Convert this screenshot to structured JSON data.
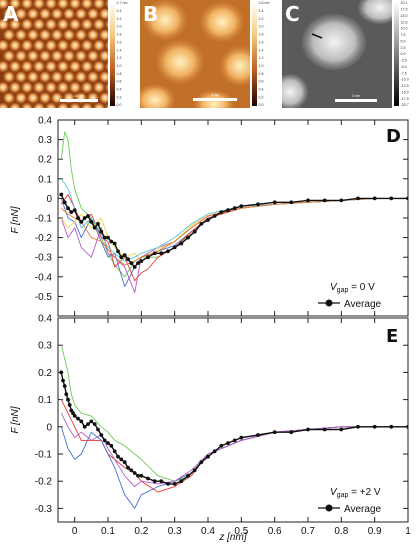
{
  "images": [
    {
      "label": "A",
      "scalebar": "10 nm",
      "colorbar_ticks": [
        "2.7 nm",
        "2.4",
        "2.2",
        "2.0",
        "1.8",
        "1.6",
        "1.4",
        "1.2",
        "1.0",
        "0.8",
        "0.6",
        "0.4",
        "0.2",
        "0.0"
      ]
    },
    {
      "label": "B",
      "scalebar": "2 nm",
      "colorbar_ticks": [
        "2.6 nm",
        "2.4",
        "2.2",
        "2.0",
        "1.8",
        "1.6",
        "1.4",
        "1.2",
        "1.0",
        "0.8",
        "0.6",
        "0.4",
        "0.2",
        "0.0"
      ]
    },
    {
      "label": "C",
      "scalebar": "3 nm",
      "colorbar_ticks": [
        "20.1",
        "17.5",
        "15.0",
        "12.5",
        "10.0",
        "7.5",
        "5.0",
        "2.5",
        "0.0",
        "-2.5",
        "-5.0",
        "-7.5",
        "-10.0",
        "-12.5",
        "-15.0",
        "-17.5",
        "-20.7"
      ]
    }
  ],
  "chart_data": [
    {
      "type": "line",
      "label": "D",
      "xlabel": "z [nm]",
      "ylabel": "F [nN]",
      "xlim": [
        -0.05,
        1.0
      ],
      "ylim": [
        -0.6,
        0.4
      ],
      "yticks": [
        "0.4",
        "0.3",
        "0.2",
        "0.1",
        "0",
        "-0.1",
        "-0.2",
        "-0.3",
        "-0.4",
        "-0.5"
      ],
      "legend_condition": {
        "prefix": "V",
        "sub": "gap",
        "suffix": " = 0 V"
      },
      "legend_average": "Average",
      "legend_position": "bottom-right",
      "series": [
        {
          "color": "#6ec85a",
          "x": [
            -0.04,
            -0.03,
            -0.02,
            -0.01,
            0,
            0.02,
            0.05,
            0.08,
            0.1,
            0.12,
            0.15,
            0.18,
            0.2,
            0.25,
            0.3,
            0.35,
            0.4,
            0.5,
            0.6,
            0.7,
            0.8,
            0.9,
            1.0
          ],
          "y": [
            0.2,
            0.34,
            0.3,
            0.15,
            0.05,
            -0.05,
            -0.1,
            -0.2,
            -0.28,
            -0.34,
            -0.4,
            -0.32,
            -0.3,
            -0.3,
            -0.25,
            -0.18,
            -0.1,
            -0.05,
            -0.03,
            -0.02,
            -0.01,
            0.0,
            0.0
          ]
        },
        {
          "color": "#4a6fd0",
          "x": [
            -0.04,
            -0.02,
            0,
            0.02,
            0.05,
            0.08,
            0.1,
            0.12,
            0.15,
            0.18,
            0.2,
            0.25,
            0.3,
            0.35,
            0.4,
            0.5,
            0.6,
            0.7,
            0.8,
            0.9,
            1.0
          ],
          "y": [
            0.0,
            -0.1,
            -0.12,
            -0.2,
            -0.1,
            -0.22,
            -0.3,
            -0.28,
            -0.45,
            -0.35,
            -0.3,
            -0.27,
            -0.24,
            -0.17,
            -0.1,
            -0.05,
            -0.03,
            -0.02,
            -0.01,
            0.0,
            0.0
          ]
        },
        {
          "color": "#e83838",
          "x": [
            -0.04,
            -0.02,
            0,
            0.02,
            0.05,
            0.08,
            0.1,
            0.12,
            0.15,
            0.18,
            0.2,
            0.22,
            0.25,
            0.3,
            0.35,
            0.4,
            0.5,
            0.6,
            0.7,
            0.8,
            0.9,
            1.0
          ],
          "y": [
            -0.03,
            0.02,
            -0.05,
            -0.12,
            -0.08,
            -0.2,
            -0.22,
            -0.35,
            -0.3,
            -0.42,
            -0.38,
            -0.36,
            -0.3,
            -0.25,
            -0.17,
            -0.1,
            -0.05,
            -0.03,
            -0.02,
            -0.01,
            0.0,
            0.0
          ]
        },
        {
          "color": "#b35ac9",
          "x": [
            -0.04,
            -0.02,
            0,
            0.02,
            0.05,
            0.08,
            0.1,
            0.12,
            0.15,
            0.18,
            0.2,
            0.25,
            0.3,
            0.35,
            0.4,
            0.5,
            0.6,
            0.7,
            0.8,
            0.9,
            1.0
          ],
          "y": [
            -0.1,
            -0.2,
            -0.15,
            -0.25,
            -0.3,
            -0.15,
            -0.28,
            -0.3,
            -0.35,
            -0.48,
            -0.3,
            -0.25,
            -0.22,
            -0.15,
            -0.09,
            -0.05,
            -0.03,
            -0.02,
            -0.01,
            0.0,
            0.0
          ]
        },
        {
          "color": "#e8d848",
          "x": [
            -0.04,
            -0.02,
            0,
            0.02,
            0.05,
            0.08,
            0.1,
            0.12,
            0.15,
            0.18,
            0.2,
            0.25,
            0.3,
            0.35,
            0.4,
            0.5,
            0.6,
            0.7,
            0.8,
            0.9,
            1.0
          ],
          "y": [
            -0.1,
            -0.15,
            -0.12,
            -0.08,
            -0.15,
            -0.1,
            -0.2,
            -0.25,
            -0.3,
            -0.28,
            -0.32,
            -0.26,
            -0.22,
            -0.14,
            -0.08,
            -0.05,
            -0.03,
            -0.02,
            -0.01,
            0.0,
            0.0
          ]
        },
        {
          "color": "#5bc8d8",
          "x": [
            -0.04,
            -0.02,
            0,
            0.02,
            0.05,
            0.08,
            0.1,
            0.12,
            0.15,
            0.18,
            0.2,
            0.25,
            0.3,
            0.35,
            0.4,
            0.5,
            0.6,
            0.7,
            0.8,
            0.9,
            1.0
          ],
          "y": [
            0.1,
            0.05,
            -0.05,
            -0.15,
            -0.1,
            -0.18,
            -0.25,
            -0.28,
            -0.32,
            -0.3,
            -0.28,
            -0.25,
            -0.2,
            -0.13,
            -0.08,
            -0.04,
            -0.03,
            -0.02,
            -0.01,
            0.0,
            0.0
          ]
        },
        {
          "color": "#e87a30",
          "x": [
            -0.04,
            -0.02,
            0,
            0.02,
            0.05,
            0.08,
            0.1,
            0.12,
            0.15,
            0.18,
            0.2,
            0.25,
            0.3,
            0.35,
            0.4,
            0.5,
            0.6,
            0.7,
            0.8,
            0.9,
            1.0
          ],
          "y": [
            -0.05,
            -0.08,
            -0.1,
            -0.12,
            -0.2,
            -0.22,
            -0.26,
            -0.3,
            -0.34,
            -0.32,
            -0.3,
            -0.27,
            -0.22,
            -0.15,
            -0.09,
            -0.05,
            -0.03,
            -0.02,
            -0.01,
            0.0,
            0.0
          ]
        }
      ],
      "average": {
        "x": [
          -0.04,
          -0.03,
          -0.02,
          -0.01,
          0.0,
          0.01,
          0.02,
          0.03,
          0.04,
          0.05,
          0.06,
          0.07,
          0.08,
          0.09,
          0.1,
          0.11,
          0.12,
          0.13,
          0.14,
          0.15,
          0.16,
          0.17,
          0.18,
          0.19,
          0.2,
          0.22,
          0.24,
          0.26,
          0.28,
          0.3,
          0.32,
          0.34,
          0.36,
          0.38,
          0.4,
          0.42,
          0.44,
          0.46,
          0.48,
          0.5,
          0.55,
          0.6,
          0.65,
          0.7,
          0.75,
          0.8,
          0.85,
          0.9,
          0.95,
          1.0
        ],
        "y": [
          0.02,
          -0.02,
          -0.05,
          -0.07,
          -0.06,
          -0.1,
          -0.12,
          -0.1,
          -0.09,
          -0.12,
          -0.15,
          -0.13,
          -0.17,
          -0.2,
          -0.2,
          -0.22,
          -0.23,
          -0.27,
          -0.3,
          -0.29,
          -0.31,
          -0.33,
          -0.35,
          -0.33,
          -0.32,
          -0.3,
          -0.28,
          -0.28,
          -0.27,
          -0.25,
          -0.23,
          -0.2,
          -0.17,
          -0.13,
          -0.11,
          -0.09,
          -0.07,
          -0.06,
          -0.05,
          -0.04,
          -0.03,
          -0.02,
          -0.02,
          -0.01,
          -0.01,
          -0.01,
          0.0,
          0.0,
          0.0,
          0.0
        ]
      }
    },
    {
      "type": "line",
      "label": "E",
      "xlabel": "z [nm]",
      "ylabel": "F [nN]",
      "xlim": [
        -0.05,
        1.0
      ],
      "ylim": [
        -0.35,
        0.4
      ],
      "yticks": [
        "0.4",
        "0.3",
        "0.2",
        "0.1",
        "0",
        "-0.1",
        "-0.2",
        "-0.3"
      ],
      "xticks": [
        "0",
        "0.1",
        "0.2",
        "0.3",
        "0.4",
        "0.5",
        "0.6",
        "0.7",
        "0.8",
        "0.9",
        "1"
      ],
      "legend_condition": {
        "prefix": "V",
        "sub": "gap",
        "suffix": " = +2 V"
      },
      "legend_average": "Average",
      "legend_position": "bottom-right",
      "series": [
        {
          "color": "#6ec85a",
          "x": [
            -0.04,
            -0.03,
            -0.02,
            -0.01,
            0,
            0.02,
            0.05,
            0.08,
            0.1,
            0.12,
            0.15,
            0.18,
            0.2,
            0.25,
            0.3,
            0.35,
            0.4,
            0.5,
            0.6,
            0.7,
            0.8,
            0.9,
            1.0
          ],
          "y": [
            0.3,
            0.25,
            0.2,
            0.12,
            0.08,
            0.05,
            0.04,
            0.0,
            -0.02,
            -0.05,
            -0.07,
            -0.1,
            -0.12,
            -0.18,
            -0.2,
            -0.18,
            -0.1,
            -0.05,
            -0.02,
            -0.01,
            0.0,
            0.0,
            0.0
          ]
        },
        {
          "color": "#e83838",
          "x": [
            -0.04,
            -0.02,
            0,
            0.02,
            0.05,
            0.08,
            0.1,
            0.12,
            0.15,
            0.18,
            0.2,
            0.25,
            0.3,
            0.35,
            0.4,
            0.5,
            0.6,
            0.7,
            0.8,
            0.9,
            1.0
          ],
          "y": [
            0.1,
            0.05,
            0.0,
            -0.05,
            -0.05,
            -0.05,
            -0.1,
            -0.12,
            -0.15,
            -0.17,
            -0.2,
            -0.24,
            -0.22,
            -0.18,
            -0.1,
            -0.05,
            -0.02,
            -0.01,
            0.0,
            0.0,
            0.0
          ]
        },
        {
          "color": "#4a6fd0",
          "x": [
            -0.04,
            -0.02,
            0,
            0.02,
            0.05,
            0.08,
            0.1,
            0.12,
            0.15,
            0.18,
            0.2,
            0.25,
            0.3,
            0.35,
            0.4,
            0.5,
            0.6,
            0.7,
            0.8,
            0.9,
            1.0
          ],
          "y": [
            0.0,
            -0.08,
            -0.12,
            -0.1,
            -0.02,
            -0.05,
            -0.1,
            -0.15,
            -0.25,
            -0.3,
            -0.25,
            -0.22,
            -0.2,
            -0.17,
            -0.1,
            -0.05,
            -0.02,
            -0.01,
            0.0,
            0.0,
            0.0
          ]
        },
        {
          "color": "#b35ac9",
          "x": [
            -0.04,
            -0.02,
            0,
            0.02,
            0.05,
            0.08,
            0.1,
            0.12,
            0.15,
            0.18,
            0.2,
            0.25,
            0.3,
            0.35,
            0.4,
            0.5,
            0.6,
            0.7,
            0.8,
            0.9,
            1.0
          ],
          "y": [
            0.05,
            0.0,
            -0.04,
            -0.02,
            -0.05,
            -0.03,
            -0.08,
            -0.12,
            -0.18,
            -0.22,
            -0.2,
            -0.21,
            -0.2,
            -0.16,
            -0.1,
            -0.05,
            -0.02,
            -0.01,
            0.0,
            0.0,
            0.0
          ]
        }
      ],
      "average": {
        "x": [
          -0.04,
          -0.035,
          -0.03,
          -0.025,
          -0.02,
          -0.015,
          -0.01,
          -0.005,
          0.0,
          0.01,
          0.02,
          0.03,
          0.04,
          0.05,
          0.06,
          0.07,
          0.08,
          0.09,
          0.1,
          0.11,
          0.12,
          0.13,
          0.14,
          0.15,
          0.16,
          0.17,
          0.18,
          0.19,
          0.2,
          0.22,
          0.24,
          0.26,
          0.28,
          0.3,
          0.32,
          0.34,
          0.36,
          0.38,
          0.4,
          0.42,
          0.44,
          0.46,
          0.48,
          0.5,
          0.55,
          0.6,
          0.65,
          0.7,
          0.75,
          0.8,
          0.85,
          0.9,
          0.95,
          1.0
        ],
        "y": [
          0.2,
          0.17,
          0.15,
          0.12,
          0.1,
          0.08,
          0.06,
          0.05,
          0.04,
          0.03,
          0.02,
          0.0,
          0.01,
          0.02,
          0.01,
          -0.01,
          -0.03,
          -0.05,
          -0.06,
          -0.07,
          -0.09,
          -0.11,
          -0.12,
          -0.13,
          -0.15,
          -0.16,
          -0.17,
          -0.18,
          -0.18,
          -0.19,
          -0.2,
          -0.2,
          -0.21,
          -0.21,
          -0.2,
          -0.18,
          -0.16,
          -0.13,
          -0.11,
          -0.09,
          -0.07,
          -0.06,
          -0.05,
          -0.04,
          -0.03,
          -0.02,
          -0.02,
          -0.01,
          -0.01,
          -0.01,
          0.0,
          0.0,
          0.0,
          0.0
        ]
      }
    }
  ]
}
